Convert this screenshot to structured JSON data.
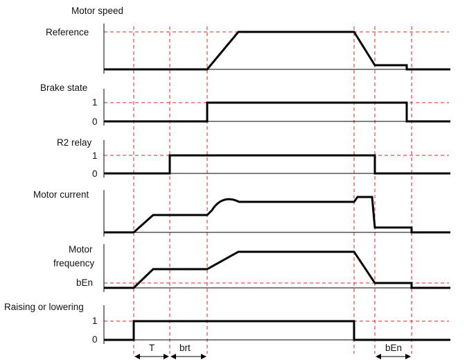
{
  "panels": {
    "motor_speed": {
      "title": "Motor speed",
      "reference_label": "Reference"
    },
    "brake_state": {
      "title": "Brake state",
      "level_high": "1",
      "level_low": "0"
    },
    "r2_relay": {
      "title": "R2 relay",
      "level_high": "1",
      "level_low": "0"
    },
    "motor_current": {
      "title": "Motor current"
    },
    "motor_frequency": {
      "title_line1": "Motor",
      "title_line2": "frequency",
      "threshold_label": "bEn"
    },
    "raising_lowering": {
      "title": "Raising or lowering",
      "level_high": "1",
      "level_low": "0"
    }
  },
  "intervals": {
    "t_label": "T",
    "brt_label": "brt",
    "ben_label": "bEn"
  },
  "colors": {
    "signal": "#000000",
    "reference_lines": "#e02020",
    "text": "#111111"
  }
}
